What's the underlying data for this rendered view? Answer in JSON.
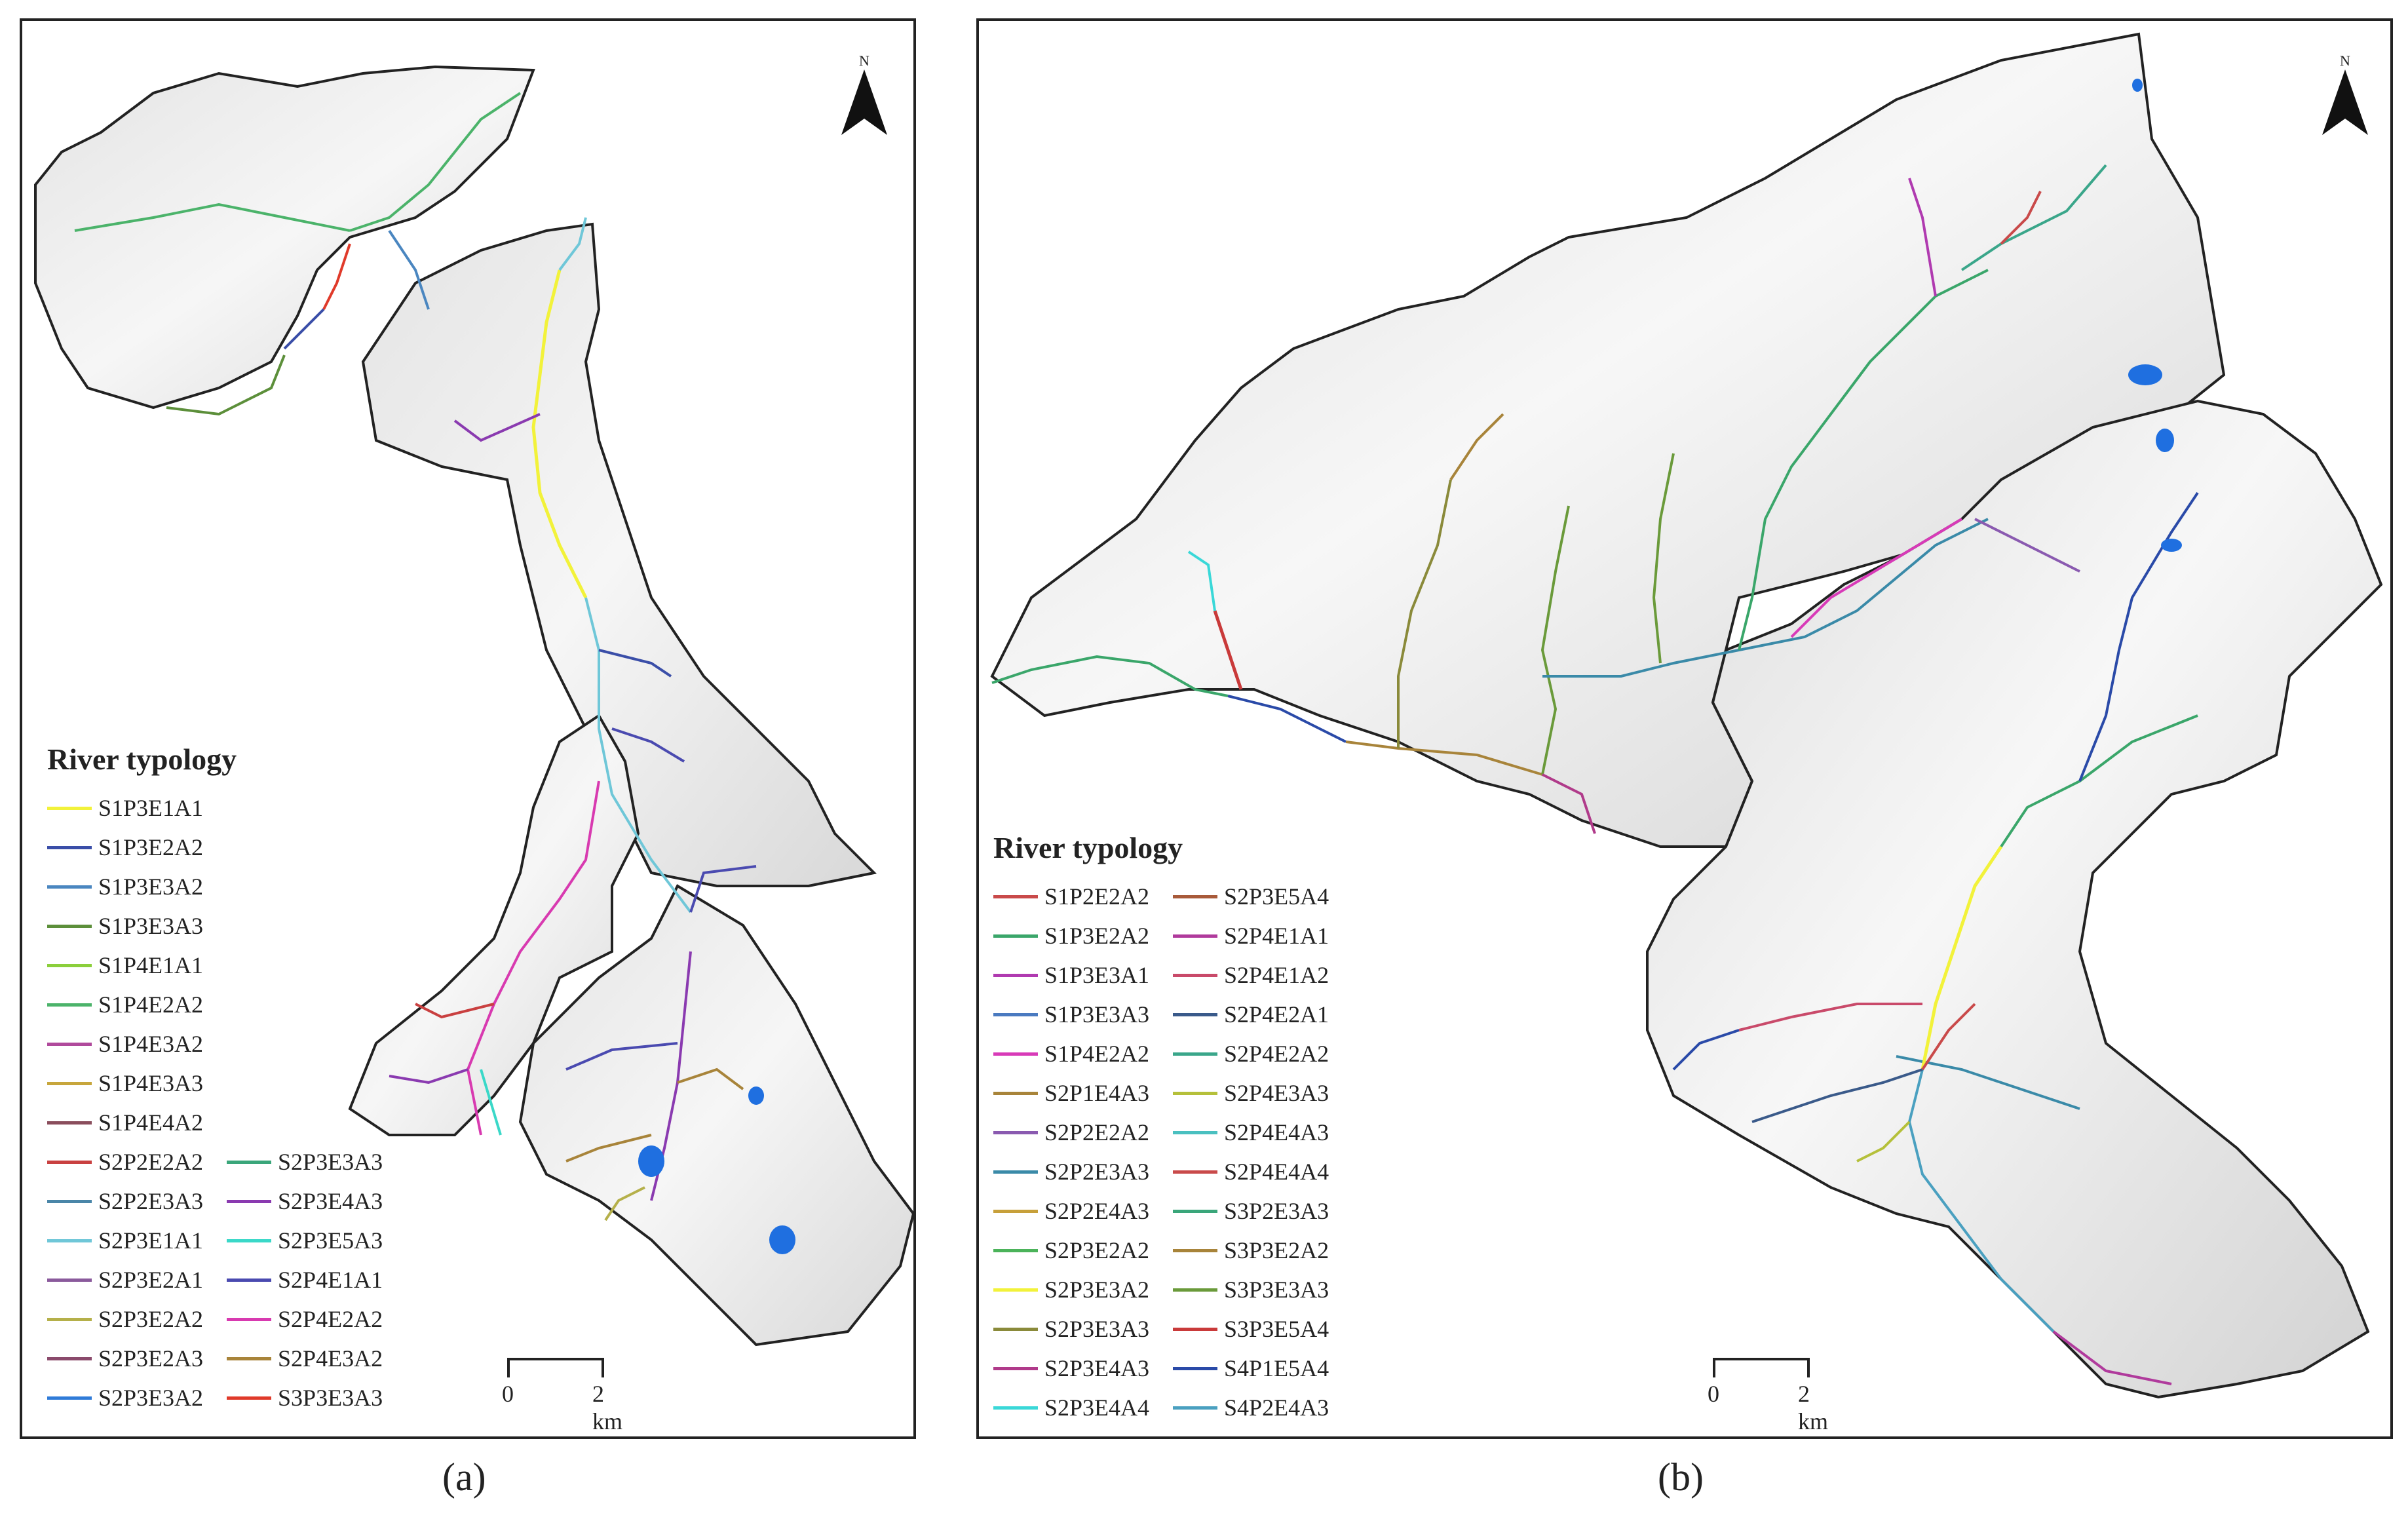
{
  "panel_a": {
    "caption": "(a)",
    "legend_title": "River typology",
    "legend_col1": [
      {
        "label": "S1P3E1A1",
        "color": "#f2f23a"
      },
      {
        "label": "S1P3E2A2",
        "color": "#3a4ea8"
      },
      {
        "label": "S1P3E3A2",
        "color": "#4a86c0"
      },
      {
        "label": "S1P3E3A3",
        "color": "#5c8f3a"
      },
      {
        "label": "S1P4E1A1",
        "color": "#8bcf3b"
      },
      {
        "label": "S1P4E2A2",
        "color": "#4bb36a"
      },
      {
        "label": "S1P4E3A2",
        "color": "#b04a9c"
      },
      {
        "label": "S1P4E3A3",
        "color": "#c7a63c"
      },
      {
        "label": "S1P4E4A2",
        "color": "#8a4d5c"
      },
      {
        "label": "S2P2E2A2",
        "color": "#c94040"
      },
      {
        "label": "S2P2E3A3",
        "color": "#4a86a8"
      },
      {
        "label": "S2P3E1A1",
        "color": "#6fc7d8"
      },
      {
        "label": "S2P3E2A1",
        "color": "#8a5a9c"
      },
      {
        "label": "S2P3E2A2",
        "color": "#b5b04a"
      },
      {
        "label": "S2P3E2A3",
        "color": "#8a4a6c"
      },
      {
        "label": "S2P3E3A2",
        "color": "#2f7bd8"
      }
    ],
    "legend_col2": [
      {
        "label": "S2P3E3A3",
        "color": "#3aa67a"
      },
      {
        "label": "S2P3E4A3",
        "color": "#8a3ab0"
      },
      {
        "label": "S2P3E5A3",
        "color": "#3ad8c8"
      },
      {
        "label": "S2P4E1A1",
        "color": "#4a4ab0"
      },
      {
        "label": "S2P4E2A2",
        "color": "#d83ab0"
      },
      {
        "label": "S2P4E3A2",
        "color": "#a8843a"
      },
      {
        "label": "S3P3E3A3",
        "color": "#e03a2a"
      }
    ],
    "north_label": "N",
    "scale_labels": [
      "0",
      "2 km"
    ]
  },
  "panel_b": {
    "caption": "(b)",
    "legend_title": "River typology",
    "legend_col1": [
      {
        "label": "S1P2E2A2",
        "color": "#c94a4a"
      },
      {
        "label": "S1P3E2A2",
        "color": "#3aa66a"
      },
      {
        "label": "S1P3E3A1",
        "color": "#b03ab0"
      },
      {
        "label": "S1P3E3A3",
        "color": "#4a7ac0"
      },
      {
        "label": "S1P4E2A2",
        "color": "#d83ab8"
      },
      {
        "label": "S2P1E4A3",
        "color": "#a8843a"
      },
      {
        "label": "S2P2E2A2",
        "color": "#8a5ab0"
      },
      {
        "label": "S2P2E3A3",
        "color": "#3a8aa8"
      },
      {
        "label": "S2P2E4A3",
        "color": "#c7a03a"
      },
      {
        "label": "S2P3E2A2",
        "color": "#4bb35a"
      },
      {
        "label": "S2P3E3A2",
        "color": "#f2f23a"
      },
      {
        "label": "S2P3E3A3",
        "color": "#8a8a3a"
      },
      {
        "label": "S2P3E4A3",
        "color": "#b03a8a"
      },
      {
        "label": "S2P3E4A4",
        "color": "#3ad8d8"
      }
    ],
    "legend_col2": [
      {
        "label": "S2P3E5A4",
        "color": "#a85a3a"
      },
      {
        "label": "S2P4E1A1",
        "color": "#b03a9c"
      },
      {
        "label": "S2P4E1A2",
        "color": "#c94a6a"
      },
      {
        "label": "S2P4E2A1",
        "color": "#3a5a8a"
      },
      {
        "label": "S2P4E2A2",
        "color": "#3aa68a"
      },
      {
        "label": "S2P4E3A3",
        "color": "#b5c03a"
      },
      {
        "label": "S2P4E4A3",
        "color": "#4ac0c0"
      },
      {
        "label": "S2P4E4A4",
        "color": "#c94a4a"
      },
      {
        "label": "S3P2E3A3",
        "color": "#3aa67a"
      },
      {
        "label": "S3P3E2A2",
        "color": "#a8843a"
      },
      {
        "label": "S3P3E3A3",
        "color": "#6a9a3a"
      },
      {
        "label": "S3P3E5A4",
        "color": "#c93a3a"
      },
      {
        "label": "S4P1E5A4",
        "color": "#2a4aa8"
      },
      {
        "label": "S4P2E4A3",
        "color": "#4aa0c0"
      }
    ],
    "north_label": "N",
    "scale_labels": [
      "0",
      "2 km"
    ]
  }
}
